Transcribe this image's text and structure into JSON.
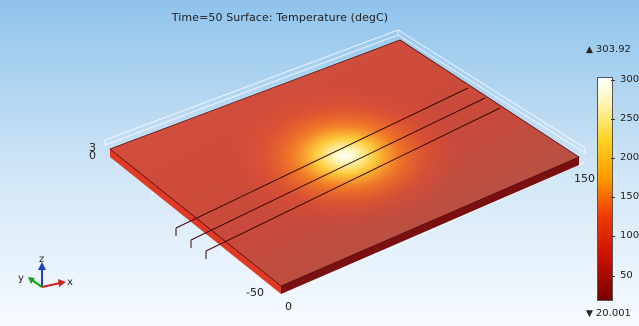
{
  "plot": {
    "title": "Time=50   Surface: Temperature (degC)"
  },
  "axes": {
    "x_axis_label": "x",
    "y_axis_label": "y",
    "z_axis_label": "z",
    "tick_3": "3",
    "tick_0_top": "0",
    "tick_150": "150",
    "tick_neg50": "-50",
    "tick_0_bottom": "0"
  },
  "colorbar": {
    "max_label": "303.92",
    "min_label": "20.001",
    "ticks": [
      {
        "label": "300",
        "value": 300
      },
      {
        "label": "250",
        "value": 250
      },
      {
        "label": "200",
        "value": 200
      },
      {
        "label": "150",
        "value": 150
      },
      {
        "label": "100",
        "value": 100
      },
      {
        "label": "50",
        "value": 50
      }
    ],
    "range": [
      20.001,
      303.92
    ]
  },
  "colors": {
    "sky_top": "#8fc3ec",
    "plate_base": "#c74a3c",
    "hot_spot": "#ffffff",
    "edge_dark": "#7a0f0f"
  }
}
